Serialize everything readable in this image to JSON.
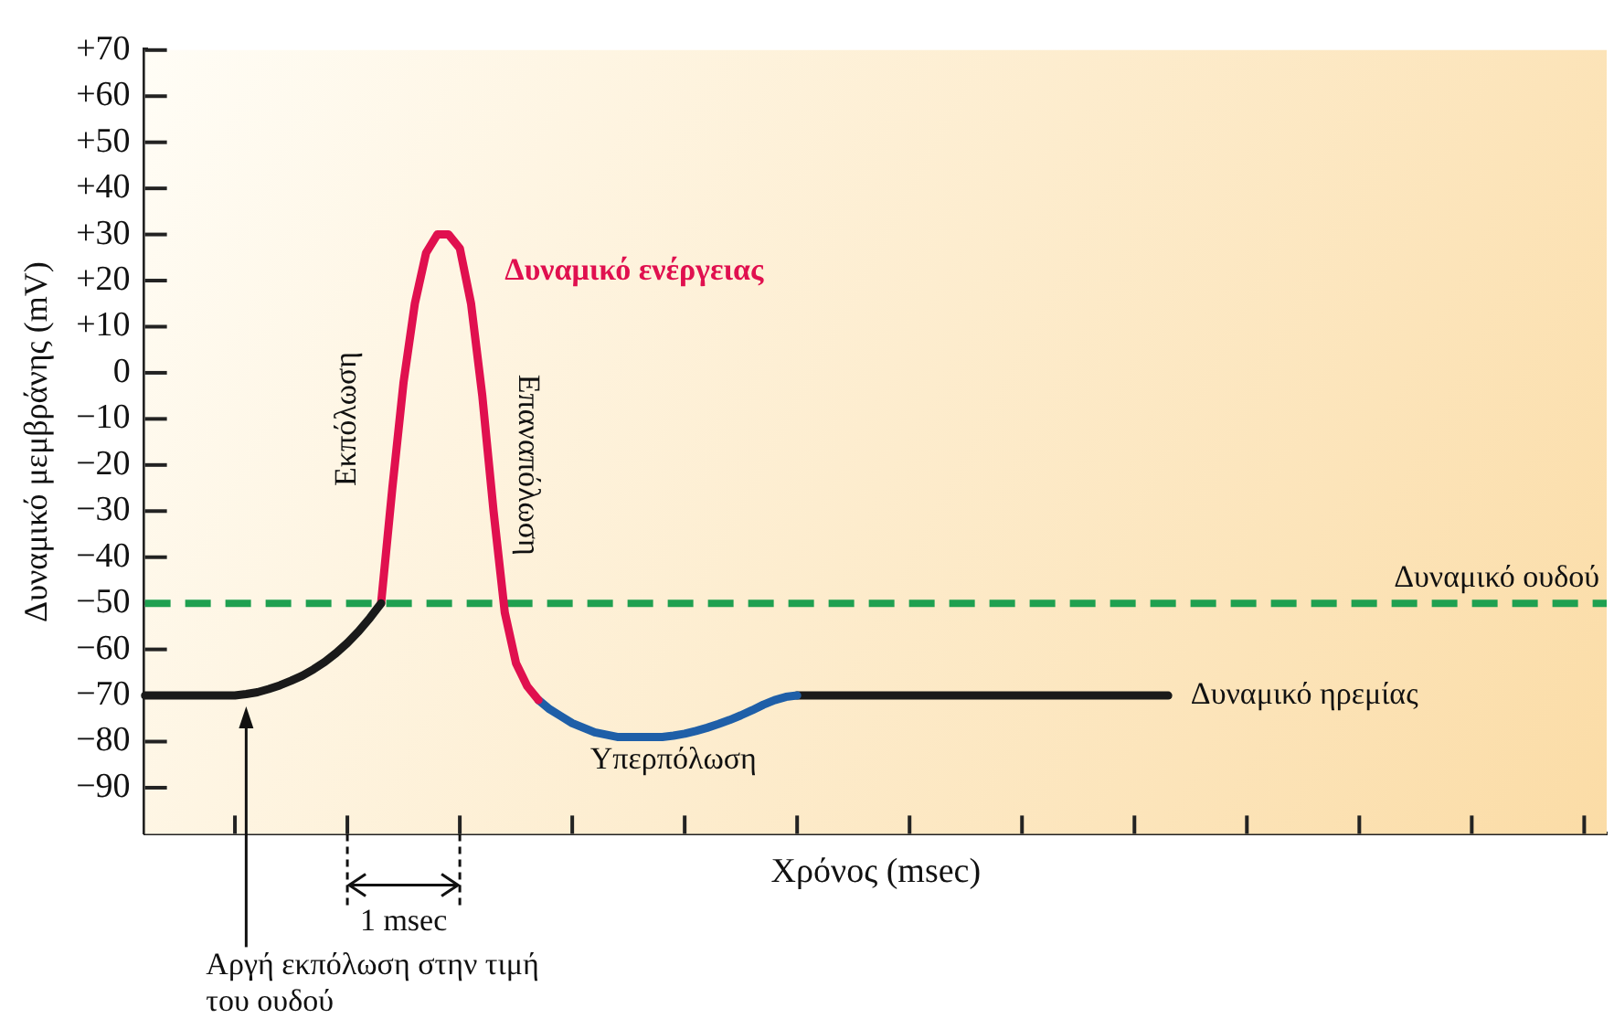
{
  "chart_data": {
    "type": "line",
    "ylabel": "Δυναμικό μεμβράνης (mV)",
    "xlabel": "Χρόνος (msec)",
    "categories": [
      null,
      null,
      null,
      null,
      null,
      null,
      null,
      null,
      null,
      null,
      null,
      null,
      null,
      null,
      null,
      null,
      null,
      null,
      null,
      null,
      null,
      null,
      null,
      null,
      null,
      null,
      null,
      null,
      null,
      null,
      null,
      null,
      null,
      null,
      null,
      null,
      null,
      null,
      null,
      null,
      null,
      null,
      null,
      null,
      null,
      null,
      null,
      null,
      null,
      null,
      null,
      null,
      null,
      null,
      null,
      null,
      null,
      null,
      null,
      null,
      null,
      null,
      null,
      null,
      null,
      null,
      null,
      null,
      null,
      null,
      null,
      null,
      null,
      null,
      null,
      null,
      null,
      null,
      null,
      null,
      null,
      null,
      null,
      null,
      null,
      null,
      null,
      null,
      null,
      null,
      null,
      null,
      null,
      null,
      null,
      null,
      null,
      null,
      null,
      null,
      null,
      null,
      null,
      null,
      null,
      null,
      null,
      null,
      null,
      null,
      null,
      null,
      null,
      null,
      null,
      null,
      null,
      null,
      null,
      null,
      null,
      null,
      null,
      null,
      null,
      null,
      null,
      null,
      null,
      null,
      null
    ],
    "ylim": [
      -100,
      70
    ],
    "yticks": [
      {
        "value": 70,
        "label": "+70"
      },
      {
        "value": 60,
        "label": "+60"
      },
      {
        "value": 50,
        "label": "+50"
      },
      {
        "value": 40,
        "label": "+40"
      },
      {
        "value": 30,
        "label": "+30"
      },
      {
        "value": 20,
        "label": "+20"
      },
      {
        "value": 10,
        "label": "+10"
      },
      0,
      {
        "value": -10,
        "label": "−10"
      },
      {
        "value": -20,
        "label": "−20"
      },
      {
        "value": -30,
        "label": "−30"
      },
      {
        "value": -40,
        "label": "−40"
      },
      {
        "value": -50,
        "label": "−50"
      },
      {
        "value": -60,
        "label": "−60"
      },
      {
        "value": -70,
        "label": "−70"
      },
      {
        "value": -80,
        "label": "−80"
      },
      {
        "value": -90,
        "label": "−90"
      }
    ],
    "tick_labels": "y",
    "grid": false,
    "legend": false,
    "marker": "none",
    "line_style": "solid",
    "series": [
      {
        "color": "#1a1a1a",
        "values": [
          -70,
          -70,
          -70,
          -70,
          -70,
          -70,
          -70,
          -70,
          -70,
          -69.7,
          -69.3,
          -68.6,
          -67.8,
          -66.8,
          -65.7,
          -64.3,
          -62.7,
          -60.8,
          -58.6,
          -56.1,
          -53.2,
          -50,
          null,
          null,
          null,
          null,
          null,
          null,
          null,
          null,
          null,
          null,
          null,
          null,
          null,
          null,
          null,
          null,
          null,
          null,
          null,
          null,
          null,
          null,
          null,
          null,
          null,
          null,
          null,
          null,
          null,
          null,
          null,
          null,
          null,
          null,
          null,
          null,
          null,
          null,
          null,
          null,
          null,
          null,
          null,
          null,
          null,
          null,
          null,
          null,
          null,
          null,
          null,
          null,
          null,
          null,
          null,
          null,
          null,
          null,
          null,
          null,
          null,
          null,
          null,
          null,
          null,
          null,
          null,
          null,
          null,
          null,
          null,
          null,
          null,
          null,
          null,
          null,
          null,
          null,
          null,
          null,
          null,
          null,
          null,
          null,
          null,
          null,
          null,
          null,
          null,
          null,
          null,
          null,
          null,
          null,
          null,
          null,
          null,
          null,
          null,
          null,
          null,
          null,
          null,
          null,
          null,
          null,
          null,
          null,
          null
        ]
      },
      {
        "color": "#e0104f",
        "values": [
          null,
          null,
          null,
          null,
          null,
          null,
          null,
          null,
          null,
          null,
          null,
          null,
          null,
          null,
          null,
          null,
          null,
          null,
          null,
          null,
          null,
          -50,
          -25,
          -2,
          15,
          26,
          30,
          30,
          27,
          15,
          -5,
          -30,
          -52,
          -63,
          -68,
          -71,
          null,
          null,
          null,
          null,
          null,
          null,
          null,
          null,
          null,
          null,
          null,
          null,
          null,
          null,
          null,
          null,
          null,
          null,
          null,
          null,
          null,
          null,
          null,
          null,
          null,
          null,
          null,
          null,
          null,
          null,
          null,
          null,
          null,
          null,
          null,
          null,
          null,
          null,
          null,
          null,
          null,
          null,
          null,
          null,
          null,
          null,
          null,
          null,
          null,
          null,
          null,
          null,
          null,
          null,
          null,
          null,
          null,
          null,
          null,
          null,
          null,
          null,
          null,
          null,
          null,
          null,
          null,
          null,
          null,
          null,
          null,
          null,
          null,
          null,
          null,
          null,
          null,
          null,
          null,
          null,
          null,
          null,
          null,
          null,
          null,
          null,
          null,
          null,
          null,
          null,
          null,
          null,
          null,
          null,
          null
        ]
      },
      {
        "color": "#1f5fa8",
        "values": [
          null,
          null,
          null,
          null,
          null,
          null,
          null,
          null,
          null,
          null,
          null,
          null,
          null,
          null,
          null,
          null,
          null,
          null,
          null,
          null,
          null,
          null,
          null,
          null,
          null,
          null,
          null,
          null,
          null,
          null,
          null,
          null,
          null,
          null,
          null,
          -71,
          -73,
          -74.5,
          -76,
          -77,
          -78,
          -78.5,
          -79,
          -79,
          -79,
          -79,
          -79,
          -78.7,
          -78.3,
          -77.7,
          -77,
          -76.2,
          -75.3,
          -74.3,
          -73.2,
          -72,
          -71,
          -70.3,
          -70,
          null,
          null,
          null,
          null,
          null,
          null,
          null,
          null,
          null,
          null,
          null,
          null,
          null,
          null,
          null,
          null,
          null,
          null,
          null,
          null,
          null,
          null,
          null,
          null,
          null,
          null,
          null,
          null,
          null,
          null,
          null,
          null,
          null,
          null,
          null,
          null,
          null,
          null,
          null,
          null,
          null,
          null,
          null,
          null,
          null,
          null,
          null,
          null,
          null,
          null,
          null,
          null,
          null,
          null,
          null,
          null,
          null,
          null,
          null,
          null,
          null,
          null,
          null,
          null,
          null,
          null,
          null,
          null,
          null,
          null,
          null,
          null
        ]
      },
      {
        "color": "#1a1a1a",
        "values": [
          null,
          null,
          null,
          null,
          null,
          null,
          null,
          null,
          null,
          null,
          null,
          null,
          null,
          null,
          null,
          null,
          null,
          null,
          null,
          null,
          null,
          null,
          null,
          null,
          null,
          null,
          null,
          null,
          null,
          null,
          null,
          null,
          null,
          null,
          null,
          null,
          null,
          null,
          null,
          null,
          null,
          null,
          null,
          null,
          null,
          null,
          null,
          null,
          null,
          null,
          null,
          null,
          null,
          null,
          null,
          null,
          null,
          null,
          -70,
          -70,
          -70,
          -70,
          -70,
          -70,
          -70,
          -70,
          -70,
          -70,
          -70,
          -70,
          -70,
          -70,
          -70,
          -70,
          -70,
          -70,
          -70,
          -70,
          -70,
          -70,
          -70,
          -70,
          -70,
          -70,
          -70,
          -70,
          -70,
          -70,
          -70,
          -70,
          -70,
          -70,
          null,
          null,
          null,
          null,
          null,
          null,
          null,
          null,
          null,
          null,
          null,
          null,
          null,
          null,
          null,
          null,
          null,
          null,
          null,
          null,
          null,
          null,
          null,
          null,
          null,
          null,
          null,
          null,
          null,
          null,
          null,
          null,
          null,
          null,
          null,
          null,
          null,
          null,
          null
        ]
      }
    ],
    "ref_lines": [
      {
        "axis": "y",
        "value": -50,
        "label": "Δυναμικό ουδού",
        "color": "#1fa050",
        "line_style": "dashed"
      }
    ],
    "annotations": [
      "Δυναμικό ενέργειας",
      "Εκπόλωση",
      "Επαναπόλωση",
      "Υπερπόλωση",
      "Δυναμικό ηρεμίας",
      "1 msec",
      "Αργή εκπόλωση στην τιμή του ουδού"
    ]
  }
}
